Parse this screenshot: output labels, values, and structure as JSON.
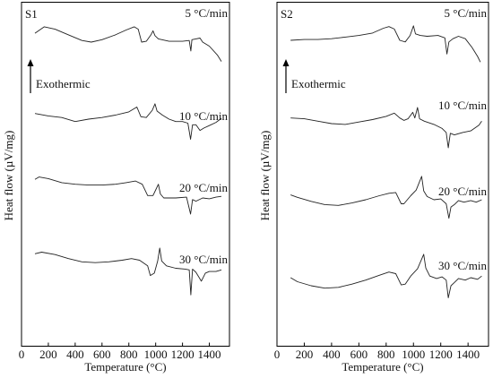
{
  "chart_data": [
    {
      "type": "line",
      "panel": "S1",
      "xlabel": "Temperature (°C)",
      "ylabel": "Heat flow (µV/mg)",
      "xlim": [
        0,
        1550
      ],
      "xticks": [
        0,
        200,
        400,
        600,
        800,
        1000,
        1200,
        1400
      ],
      "annotation": "Exothermic",
      "series": [
        {
          "name": "5 °C/min",
          "points": [
            [
              100,
              0.55
            ],
            [
              170,
              0.95
            ],
            [
              250,
              0.8
            ],
            [
              350,
              0.45
            ],
            [
              450,
              0.1
            ],
            [
              520,
              0.0
            ],
            [
              600,
              0.15
            ],
            [
              700,
              0.45
            ],
            [
              780,
              0.75
            ],
            [
              840,
              0.95
            ],
            [
              870,
              0.8
            ],
            [
              895,
              0.0
            ],
            [
              930,
              0.05
            ],
            [
              965,
              0.45
            ],
            [
              980,
              0.7
            ],
            [
              995,
              0.4
            ],
            [
              1020,
              0.2
            ],
            [
              1100,
              0.05
            ],
            [
              1200,
              0.05
            ],
            [
              1250,
              0.1
            ],
            [
              1262,
              -0.55
            ],
            [
              1270,
              0.15
            ],
            [
              1300,
              0.2
            ],
            [
              1330,
              0.25
            ],
            [
              1350,
              0.0
            ],
            [
              1400,
              -0.25
            ],
            [
              1460,
              -0.8
            ],
            [
              1490,
              -1.2
            ]
          ]
        },
        {
          "name": "10 °C/min",
          "points": [
            [
              100,
              0.35
            ],
            [
              200,
              0.2
            ],
            [
              300,
              0.1
            ],
            [
              400,
              -0.15
            ],
            [
              500,
              0.0
            ],
            [
              600,
              0.1
            ],
            [
              700,
              0.25
            ],
            [
              800,
              0.45
            ],
            [
              860,
              0.75
            ],
            [
              890,
              0.15
            ],
            [
              930,
              0.1
            ],
            [
              975,
              0.55
            ],
            [
              995,
              0.95
            ],
            [
              1010,
              0.5
            ],
            [
              1050,
              0.25
            ],
            [
              1100,
              0.0
            ],
            [
              1150,
              -0.15
            ],
            [
              1200,
              -0.15
            ],
            [
              1240,
              -0.25
            ],
            [
              1260,
              -1.25
            ],
            [
              1275,
              -0.35
            ],
            [
              1300,
              -0.35
            ],
            [
              1330,
              -0.7
            ],
            [
              1360,
              -0.55
            ],
            [
              1400,
              -0.4
            ],
            [
              1450,
              -0.2
            ],
            [
              1490,
              0.05
            ]
          ]
        },
        {
          "name": "20 °C/min",
          "points": [
            [
              100,
              0.65
            ],
            [
              130,
              0.8
            ],
            [
              200,
              0.7
            ],
            [
              300,
              0.45
            ],
            [
              400,
              0.35
            ],
            [
              500,
              0.3
            ],
            [
              600,
              0.3
            ],
            [
              700,
              0.35
            ],
            [
              780,
              0.45
            ],
            [
              850,
              0.55
            ],
            [
              900,
              0.35
            ],
            [
              940,
              -0.35
            ],
            [
              980,
              -0.35
            ],
            [
              1000,
              0.0
            ],
            [
              1020,
              0.35
            ],
            [
              1035,
              -0.25
            ],
            [
              1060,
              -0.5
            ],
            [
              1150,
              -0.5
            ],
            [
              1230,
              -0.45
            ],
            [
              1260,
              -1.5
            ],
            [
              1275,
              -0.6
            ],
            [
              1300,
              -0.7
            ],
            [
              1350,
              -0.5
            ],
            [
              1400,
              -0.55
            ],
            [
              1450,
              -0.45
            ],
            [
              1490,
              -0.4
            ]
          ]
        },
        {
          "name": "30 °C/min",
          "points": [
            [
              100,
              0.65
            ],
            [
              150,
              0.75
            ],
            [
              250,
              0.6
            ],
            [
              350,
              0.35
            ],
            [
              450,
              0.15
            ],
            [
              550,
              0.1
            ],
            [
              650,
              0.15
            ],
            [
              750,
              0.25
            ],
            [
              820,
              0.35
            ],
            [
              880,
              0.25
            ],
            [
              940,
              -0.1
            ],
            [
              960,
              -0.7
            ],
            [
              990,
              -0.55
            ],
            [
              1015,
              0.2
            ],
            [
              1030,
              1.0
            ],
            [
              1045,
              0.2
            ],
            [
              1080,
              -0.1
            ],
            [
              1150,
              -0.25
            ],
            [
              1220,
              -0.3
            ],
            [
              1250,
              -0.35
            ],
            [
              1262,
              -1.9
            ],
            [
              1275,
              -0.3
            ],
            [
              1300,
              -0.5
            ],
            [
              1340,
              -1.05
            ],
            [
              1370,
              -0.55
            ],
            [
              1400,
              -0.45
            ],
            [
              1450,
              -0.45
            ],
            [
              1490,
              -0.35
            ]
          ]
        }
      ]
    },
    {
      "type": "line",
      "panel": "S2",
      "xlabel": "Temperature (°C)",
      "ylabel": "Heat flow (µV/mg)",
      "xlim": [
        0,
        1550
      ],
      "xticks": [
        0,
        200,
        400,
        600,
        800,
        1000,
        1200,
        1400
      ],
      "annotation": "Exothermic",
      "series": [
        {
          "name": "5 °C/min",
          "points": [
            [
              100,
              0.0
            ],
            [
              200,
              0.05
            ],
            [
              300,
              0.05
            ],
            [
              400,
              0.1
            ],
            [
              500,
              0.2
            ],
            [
              600,
              0.3
            ],
            [
              700,
              0.45
            ],
            [
              780,
              0.75
            ],
            [
              820,
              0.85
            ],
            [
              860,
              0.7
            ],
            [
              900,
              0.0
            ],
            [
              940,
              -0.1
            ],
            [
              975,
              0.3
            ],
            [
              1000,
              0.9
            ],
            [
              1015,
              0.4
            ],
            [
              1050,
              0.3
            ],
            [
              1100,
              0.25
            ],
            [
              1180,
              0.3
            ],
            [
              1230,
              0.15
            ],
            [
              1245,
              -0.85
            ],
            [
              1260,
              -0.1
            ],
            [
              1290,
              0.1
            ],
            [
              1330,
              0.25
            ],
            [
              1380,
              0.1
            ],
            [
              1430,
              -0.45
            ],
            [
              1470,
              -1.0
            ],
            [
              1490,
              -1.35
            ]
          ]
        },
        {
          "name": "10 °C/min",
          "points": [
            [
              100,
              0.35
            ],
            [
              200,
              0.3
            ],
            [
              300,
              0.15
            ],
            [
              400,
              0.0
            ],
            [
              500,
              -0.05
            ],
            [
              600,
              0.1
            ],
            [
              700,
              0.25
            ],
            [
              800,
              0.45
            ],
            [
              860,
              0.65
            ],
            [
              900,
              0.35
            ],
            [
              930,
              0.2
            ],
            [
              960,
              0.3
            ],
            [
              995,
              0.7
            ],
            [
              1010,
              0.35
            ],
            [
              1030,
              1.0
            ],
            [
              1045,
              0.3
            ],
            [
              1080,
              0.15
            ],
            [
              1150,
              -0.05
            ],
            [
              1210,
              -0.3
            ],
            [
              1240,
              -0.55
            ],
            [
              1255,
              -1.5
            ],
            [
              1270,
              -0.6
            ],
            [
              1300,
              -0.7
            ],
            [
              1360,
              -0.55
            ],
            [
              1420,
              -0.45
            ],
            [
              1480,
              -0.1
            ],
            [
              1500,
              0.15
            ]
          ]
        },
        {
          "name": "20 °C/min",
          "points": [
            [
              100,
              0.3
            ],
            [
              150,
              0.15
            ],
            [
              250,
              -0.1
            ],
            [
              350,
              -0.3
            ],
            [
              450,
              -0.35
            ],
            [
              550,
              -0.2
            ],
            [
              650,
              0.0
            ],
            [
              750,
              0.25
            ],
            [
              820,
              0.4
            ],
            [
              870,
              0.45
            ],
            [
              910,
              -0.25
            ],
            [
              930,
              -0.25
            ],
            [
              980,
              0.25
            ],
            [
              1020,
              0.6
            ],
            [
              1060,
              1.45
            ],
            [
              1075,
              0.55
            ],
            [
              1100,
              0.2
            ],
            [
              1150,
              0.0
            ],
            [
              1200,
              0.05
            ],
            [
              1240,
              -0.25
            ],
            [
              1260,
              -1.15
            ],
            [
              1275,
              -0.45
            ],
            [
              1300,
              -0.3
            ],
            [
              1330,
              -0.05
            ],
            [
              1370,
              -0.15
            ],
            [
              1420,
              -0.05
            ],
            [
              1460,
              -0.15
            ],
            [
              1500,
              0.0
            ]
          ]
        },
        {
          "name": "30 °C/min",
          "points": [
            [
              100,
              0.0
            ],
            [
              150,
              -0.25
            ],
            [
              250,
              -0.5
            ],
            [
              350,
              -0.65
            ],
            [
              450,
              -0.6
            ],
            [
              550,
              -0.4
            ],
            [
              650,
              -0.15
            ],
            [
              750,
              0.15
            ],
            [
              820,
              0.35
            ],
            [
              870,
              0.25
            ],
            [
              910,
              -0.45
            ],
            [
              940,
              -0.4
            ],
            [
              980,
              0.1
            ],
            [
              1030,
              0.55
            ],
            [
              1075,
              1.45
            ],
            [
              1090,
              0.6
            ],
            [
              1120,
              0.1
            ],
            [
              1170,
              -0.05
            ],
            [
              1210,
              0.05
            ],
            [
              1240,
              -0.15
            ],
            [
              1255,
              -1.25
            ],
            [
              1275,
              -0.5
            ],
            [
              1300,
              -0.3
            ],
            [
              1330,
              -0.05
            ],
            [
              1380,
              -0.15
            ],
            [
              1420,
              0.0
            ],
            [
              1470,
              -0.1
            ],
            [
              1500,
              0.1
            ]
          ]
        }
      ]
    }
  ]
}
